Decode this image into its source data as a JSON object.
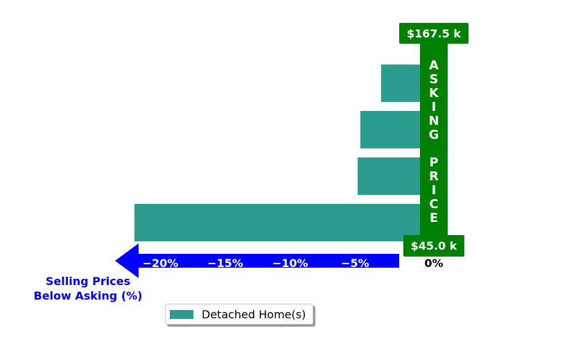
{
  "chart_data": {
    "type": "bar",
    "orientation": "horizontal",
    "series": [
      {
        "name": "Detached Home(s)",
        "color": "#2a9d8f",
        "values": [
          -22.0,
          -4.8,
          -4.6,
          -3.0
        ]
      }
    ],
    "xlim": [
      -22,
      0
    ],
    "x_ticks": [
      -20,
      -15,
      -10,
      -5
    ],
    "x_tick_labels": [
      "−20%",
      "−15%",
      "−10%",
      "−5%"
    ],
    "zero_label": "0%",
    "xlabel_line1": "Selling Prices",
    "xlabel_line2": "Below Asking (%)",
    "asking_top_label": "$167.5 k",
    "asking_bottom_label": "$45.0 k",
    "asking_letters": [
      "A",
      "S",
      "K",
      "I",
      "N",
      "G",
      "",
      "P",
      "R",
      "I",
      "C",
      "E"
    ],
    "colors": {
      "bar": "#2a9d8f",
      "asking": "#008000",
      "arrow": "#0000ff",
      "xlabel": "#0000ee"
    },
    "legend_placement": "bottom-center"
  }
}
